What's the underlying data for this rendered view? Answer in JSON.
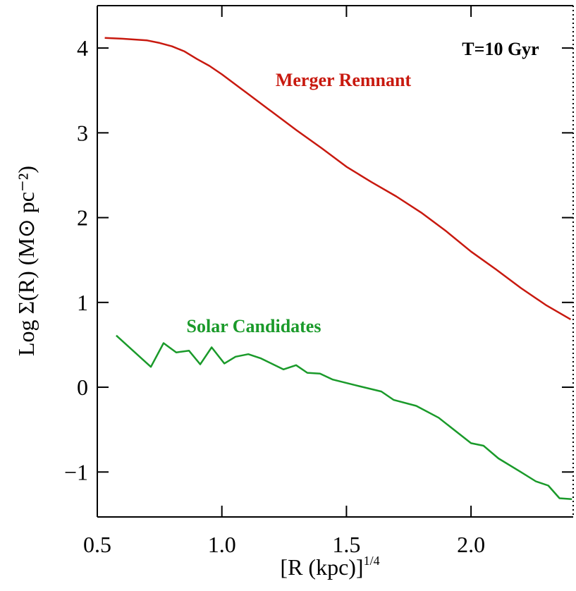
{
  "chart_data": {
    "type": "line",
    "xlabel": "[R (kpc)]",
    "xlabel_exponent": "1/4",
    "ylabel": "Log Σ(R) (M⊙ pc⁻²)",
    "annotations": [
      "T=10 Gyr",
      "Merger Remnant",
      "Solar Candidates"
    ],
    "xlim": [
      0.5,
      2.41
    ],
    "ylim": [
      -1.53,
      4.5
    ],
    "xticks": [
      {
        "value": 0.5,
        "label": "0.5"
      },
      {
        "value": 1.0,
        "label": "1.0"
      },
      {
        "value": 1.5,
        "label": "1.5"
      },
      {
        "value": 2.0,
        "label": "2.0"
      }
    ],
    "yticks": [
      {
        "value": -1,
        "label": "−1"
      },
      0,
      1,
      2,
      3,
      4
    ],
    "series": [
      {
        "name": "Merger Remnant",
        "color": "#c8190f",
        "x": [
          0.53,
          0.6,
          0.7,
          0.75,
          0.8,
          0.85,
          0.9,
          0.95,
          1.0,
          1.1,
          1.2,
          1.3,
          1.4,
          1.5,
          1.6,
          1.7,
          1.8,
          1.9,
          2.0,
          2.1,
          2.2,
          2.3,
          2.4
        ],
        "values": [
          4.12,
          4.11,
          4.09,
          4.06,
          4.02,
          3.96,
          3.87,
          3.79,
          3.69,
          3.47,
          3.25,
          3.03,
          2.82,
          2.6,
          2.42,
          2.25,
          2.06,
          1.84,
          1.6,
          1.39,
          1.17,
          0.97,
          0.8
        ]
      },
      {
        "name": "Solar Candidates",
        "color": "#1a9a2a",
        "x": [
          0.576,
          0.715,
          0.766,
          0.817,
          0.868,
          0.913,
          0.959,
          1.01,
          1.055,
          1.106,
          1.157,
          1.247,
          1.298,
          1.343,
          1.394,
          1.445,
          1.54,
          1.64,
          1.69,
          1.78,
          1.87,
          2.0,
          2.05,
          2.11,
          2.2,
          2.26,
          2.31,
          2.355,
          2.405
        ],
        "values": [
          0.61,
          0.24,
          0.52,
          0.41,
          0.43,
          0.27,
          0.47,
          0.28,
          0.36,
          0.39,
          0.34,
          0.21,
          0.26,
          0.17,
          0.16,
          0.09,
          0.02,
          -0.05,
          -0.15,
          -0.22,
          -0.36,
          -0.66,
          -0.69,
          -0.84,
          -1.0,
          -1.11,
          -1.16,
          -1.31,
          -1.32
        ]
      }
    ]
  }
}
